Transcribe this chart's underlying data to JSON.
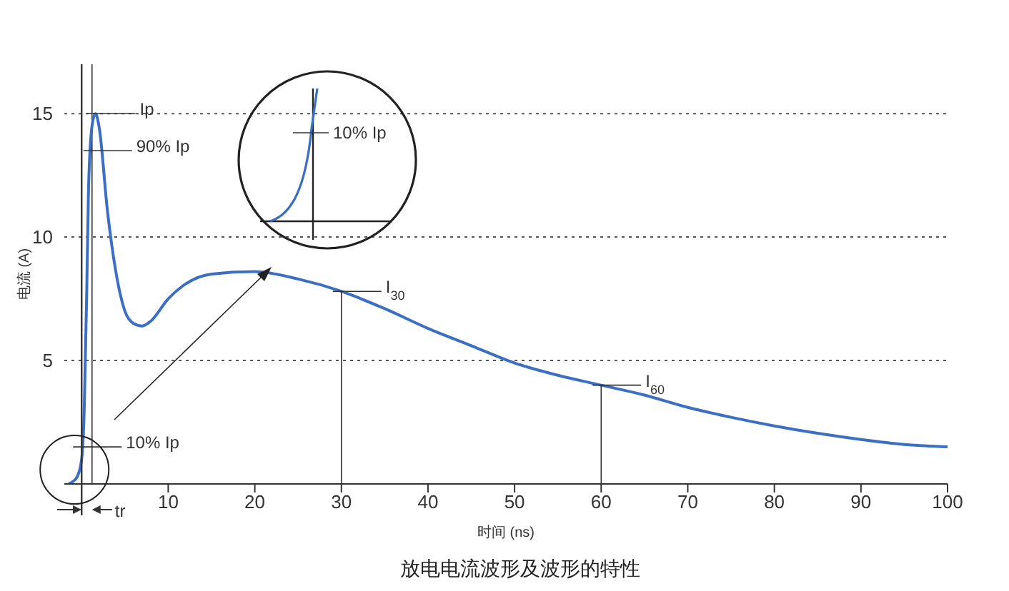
{
  "chart_data": {
    "type": "line",
    "title": "放电电流波形及波形的特性",
    "xlabel": "时间 (ns)",
    "ylabel": "电流 (A)",
    "x": [
      -1.5,
      -1,
      -0.5,
      0,
      0.3,
      0.6,
      0.8,
      1.2,
      1.6,
      2,
      3,
      4,
      5,
      6,
      7,
      8,
      10,
      12,
      15,
      20,
      25,
      30,
      35,
      40,
      45,
      50,
      55,
      60,
      65,
      70,
      75,
      80,
      85,
      90,
      95,
      100
    ],
    "series": [
      {
        "color": "#3a6fc4",
        "values": [
          0,
          0.1,
          0.3,
          1,
          3,
          8,
          12,
          14.5,
          15,
          14.5,
          11,
          8.5,
          7,
          6.5,
          6.4,
          6.6,
          7.5,
          8.1,
          8.5,
          8.6,
          8.3,
          7.8,
          7.1,
          6.3,
          5.6,
          4.9,
          4.4,
          4,
          3.6,
          3.1,
          2.7,
          2.35,
          2.05,
          1.8,
          1.6,
          1.5
        ]
      }
    ],
    "xlim": [
      -2,
      100
    ],
    "xticks": [
      10,
      20,
      30,
      40,
      50,
      60,
      70,
      80,
      90,
      100
    ],
    "ylim": [
      0,
      17
    ],
    "yticks": [
      5,
      10,
      15
    ],
    "grid": "y",
    "legend": false,
    "marker": "none",
    "line_style": "solid",
    "ref_lines": [
      {
        "axis": "x",
        "value": 1.2,
        "label": null
      }
    ],
    "annotations": [
      {
        "text": "Ip",
        "x": 1.6,
        "y": 15
      },
      {
        "text": "90% Ip",
        "x": 1.2,
        "y": 13.5
      },
      {
        "text": "10% Ip",
        "x": 0,
        "y": 1.5
      },
      {
        "text": "I$_{30}$",
        "x": 30,
        "y": 7.8
      },
      {
        "text": "I$_{60}$",
        "x": 60,
        "y": 4
      },
      "10% Ip",
      "tr"
    ]
  }
}
